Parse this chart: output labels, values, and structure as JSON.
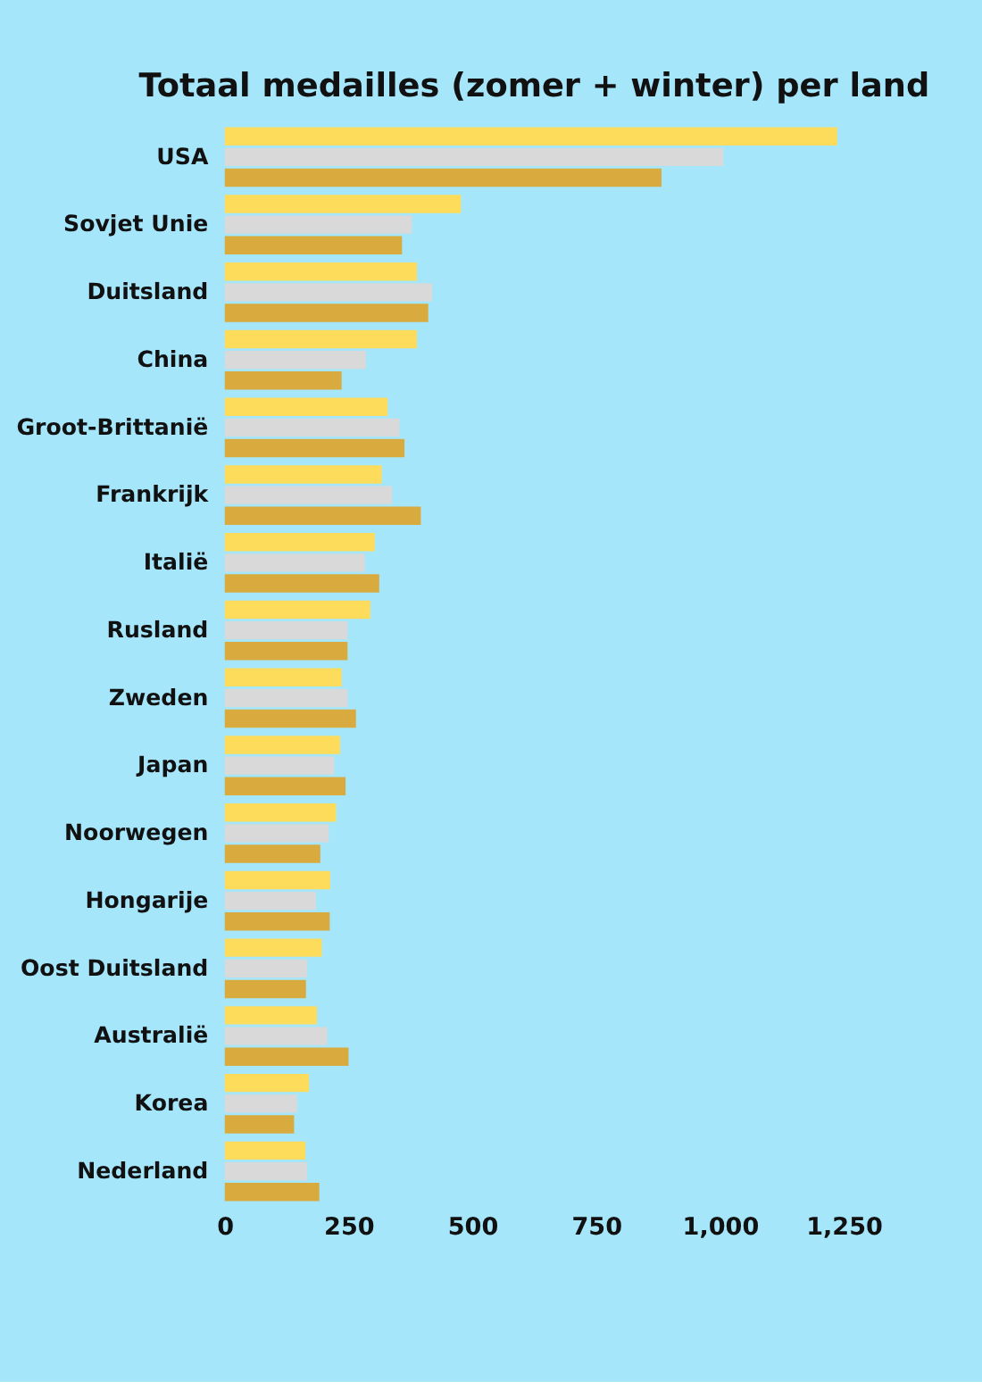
{
  "chart_data": {
    "type": "bar",
    "orientation": "horizontal",
    "title": "Totaal medailles (zomer + winter) per land",
    "categories": [
      "USA",
      "Sovjet Unie",
      "Duitsland",
      "China",
      "Groot-Brittanië",
      "Frankrijk",
      "Italië",
      "Rusland",
      "Zweden",
      "Japan",
      "Noorwegen",
      "Hongarije",
      "Oost Duitsland",
      "Australië",
      "Korea",
      "Nederland"
    ],
    "series": [
      {
        "color": "#fddc5c",
        "values": [
          1237,
          477,
          388,
          388,
          329,
          317,
          303,
          294,
          236,
          233,
          225,
          213,
          196,
          186,
          170,
          163
        ]
      },
      {
        "color": "#d9d9d9",
        "values": [
          1007,
          378,
          419,
          285,
          353,
          338,
          283,
          248,
          248,
          221,
          210,
          184,
          166,
          207,
          146,
          166
        ]
      },
      {
        "color": "#d9aa3e",
        "values": [
          882,
          358,
          411,
          236,
          363,
          396,
          312,
          248,
          265,
          244,
          193,
          212,
          164,
          250,
          140,
          191
        ]
      }
    ],
    "xlim": [
      0,
      1250
    ],
    "xticks": [
      0,
      {
        "value": 250,
        "label": "250"
      },
      {
        "value": 500,
        "label": "500"
      },
      {
        "value": 750,
        "label": "750"
      },
      {
        "value": 1000,
        "label": "1,000"
      },
      {
        "value": 1250,
        "label": "1,250"
      }
    ],
    "grid": false,
    "legend": false
  }
}
